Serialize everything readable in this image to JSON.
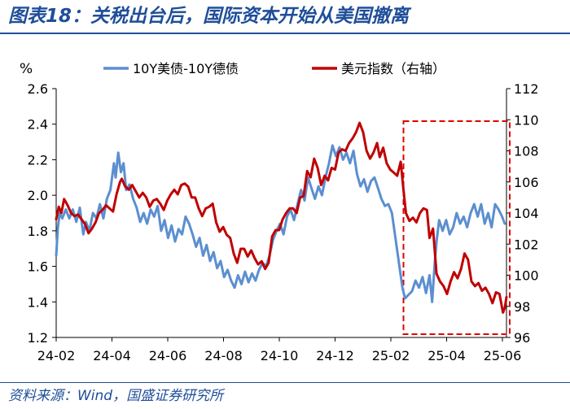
{
  "header": {
    "title": "图表18：关税出台后，国际资本开始从美国撤离"
  },
  "footer": {
    "source": "资料来源：Wind，国盛证券研究所"
  },
  "colors": {
    "title": "#1f4e99",
    "series_spread": "#5b8fd0",
    "series_dxy": "#c00000",
    "highlight_box": "#e00000"
  },
  "chart_data": {
    "type": "line",
    "left_axis": {
      "unit_label": "%",
      "range": [
        1.2,
        2.6
      ],
      "ticks": [
        "1.2",
        "1.4",
        "1.6",
        "1.8",
        "2.0",
        "2.2",
        "2.4",
        "2.6"
      ]
    },
    "right_axis": {
      "range": [
        96,
        112
      ],
      "ticks": [
        "96",
        "98",
        "100",
        "102",
        "104",
        "106",
        "108",
        "110",
        "112"
      ]
    },
    "x_axis": {
      "range": [
        "2024-02-01",
        "2025-06-30"
      ],
      "ticks": [
        "24-02",
        "24-04",
        "24-06",
        "24-08",
        "24-10",
        "24-12",
        "25-02",
        "25-04",
        "25-06"
      ]
    },
    "grid": false,
    "legend": {
      "position": "top"
    },
    "highlight": {
      "x_range": [
        "2025-03-07",
        "2025-06-30"
      ],
      "style": "dashed-box"
    },
    "series": [
      {
        "name": "10Y美债-10Y德债",
        "axis": "left",
        "color": "#5b8fd0",
        "points": [
          [
            "2024-02-01",
            1.66
          ],
          [
            "2024-02-03",
            1.82
          ],
          [
            "2024-02-05",
            1.9
          ],
          [
            "2024-02-08",
            1.87
          ],
          [
            "2024-02-12",
            1.92
          ],
          [
            "2024-02-16",
            1.87
          ],
          [
            "2024-02-20",
            1.92
          ],
          [
            "2024-02-24",
            1.85
          ],
          [
            "2024-02-28",
            1.93
          ],
          [
            "2024-03-03",
            1.78
          ],
          [
            "2024-03-06",
            1.85
          ],
          [
            "2024-03-10",
            1.8
          ],
          [
            "2024-03-14",
            1.9
          ],
          [
            "2024-03-18",
            1.87
          ],
          [
            "2024-03-22",
            1.95
          ],
          [
            "2024-03-26",
            1.87
          ],
          [
            "2024-03-30",
            1.98
          ],
          [
            "2024-04-03",
            2.03
          ],
          [
            "2024-04-07",
            2.18
          ],
          [
            "2024-04-09",
            2.1
          ],
          [
            "2024-04-12",
            2.24
          ],
          [
            "2024-04-15",
            2.13
          ],
          [
            "2024-04-18",
            2.18
          ],
          [
            "2024-04-21",
            2.03
          ],
          [
            "2024-04-25",
            2.06
          ],
          [
            "2024-04-29",
            1.98
          ],
          [
            "2024-05-03",
            1.93
          ],
          [
            "2024-05-07",
            1.85
          ],
          [
            "2024-05-11",
            1.9
          ],
          [
            "2024-05-15",
            1.84
          ],
          [
            "2024-05-19",
            1.92
          ],
          [
            "2024-05-23",
            1.88
          ],
          [
            "2024-05-27",
            1.94
          ],
          [
            "2024-05-31",
            1.8
          ],
          [
            "2024-06-04",
            1.86
          ],
          [
            "2024-06-08",
            1.76
          ],
          [
            "2024-06-12",
            1.83
          ],
          [
            "2024-06-16",
            1.74
          ],
          [
            "2024-06-20",
            1.81
          ],
          [
            "2024-06-24",
            1.78
          ],
          [
            "2024-06-28",
            1.88
          ],
          [
            "2024-07-02",
            1.84
          ],
          [
            "2024-07-06",
            1.78
          ],
          [
            "2024-07-10",
            1.71
          ],
          [
            "2024-07-14",
            1.76
          ],
          [
            "2024-07-18",
            1.66
          ],
          [
            "2024-07-22",
            1.72
          ],
          [
            "2024-07-26",
            1.63
          ],
          [
            "2024-07-30",
            1.68
          ],
          [
            "2024-08-03",
            1.59
          ],
          [
            "2024-08-07",
            1.63
          ],
          [
            "2024-08-11",
            1.54
          ],
          [
            "2024-08-15",
            1.58
          ],
          [
            "2024-08-19",
            1.52
          ],
          [
            "2024-08-23",
            1.48
          ],
          [
            "2024-08-27",
            1.55
          ],
          [
            "2024-08-31",
            1.5
          ],
          [
            "2024-09-04",
            1.57
          ],
          [
            "2024-09-08",
            1.51
          ],
          [
            "2024-09-12",
            1.56
          ],
          [
            "2024-09-16",
            1.52
          ],
          [
            "2024-09-20",
            1.58
          ],
          [
            "2024-09-24",
            1.62
          ],
          [
            "2024-09-28",
            1.6
          ],
          [
            "2024-10-02",
            1.66
          ],
          [
            "2024-10-06",
            1.75
          ],
          [
            "2024-10-10",
            1.8
          ],
          [
            "2024-10-14",
            1.84
          ],
          [
            "2024-10-18",
            1.78
          ],
          [
            "2024-10-22",
            1.88
          ],
          [
            "2024-10-26",
            1.92
          ],
          [
            "2024-10-30",
            1.86
          ],
          [
            "2024-11-03",
            1.95
          ],
          [
            "2024-11-07",
            2.03
          ],
          [
            "2024-11-11",
            1.97
          ],
          [
            "2024-11-15",
            2.1
          ],
          [
            "2024-11-19",
            2.04
          ],
          [
            "2024-11-23",
            1.98
          ],
          [
            "2024-11-27",
            2.05
          ],
          [
            "2024-12-01",
            2.0
          ],
          [
            "2024-12-05",
            2.1
          ],
          [
            "2024-12-09",
            2.18
          ],
          [
            "2024-12-13",
            2.28
          ],
          [
            "2024-12-17",
            2.22
          ],
          [
            "2024-12-21",
            2.27
          ],
          [
            "2024-12-25",
            2.2
          ],
          [
            "2024-12-29",
            2.24
          ],
          [
            "2025-01-02",
            2.18
          ],
          [
            "2025-01-06",
            2.25
          ],
          [
            "2025-01-10",
            2.12
          ],
          [
            "2025-01-14",
            2.05
          ],
          [
            "2025-01-18",
            2.09
          ],
          [
            "2025-01-22",
            2.02
          ],
          [
            "2025-01-26",
            2.08
          ],
          [
            "2025-01-30",
            2.1
          ],
          [
            "2025-02-03",
            2.04
          ],
          [
            "2025-02-07",
            1.98
          ],
          [
            "2025-02-11",
            1.94
          ],
          [
            "2025-02-15",
            1.95
          ],
          [
            "2025-02-19",
            1.9
          ],
          [
            "2025-02-23",
            1.76
          ],
          [
            "2025-02-27",
            1.62
          ],
          [
            "2025-03-03",
            1.48
          ],
          [
            "2025-03-06",
            1.42
          ],
          [
            "2025-03-10",
            1.44
          ],
          [
            "2025-03-14",
            1.46
          ],
          [
            "2025-03-18",
            1.52
          ],
          [
            "2025-03-22",
            1.48
          ],
          [
            "2025-03-26",
            1.54
          ],
          [
            "2025-03-30",
            1.45
          ],
          [
            "2025-04-03",
            1.55
          ],
          [
            "2025-04-06",
            1.4
          ],
          [
            "2025-04-09",
            1.62
          ],
          [
            "2025-04-11",
            1.74
          ],
          [
            "2025-04-14",
            1.86
          ],
          [
            "2025-04-18",
            1.8
          ],
          [
            "2025-04-22",
            1.86
          ],
          [
            "2025-04-26",
            1.78
          ],
          [
            "2025-04-30",
            1.82
          ],
          [
            "2025-05-04",
            1.9
          ],
          [
            "2025-05-08",
            1.84
          ],
          [
            "2025-05-12",
            1.88
          ],
          [
            "2025-05-16",
            1.82
          ],
          [
            "2025-05-20",
            1.9
          ],
          [
            "2025-05-24",
            1.95
          ],
          [
            "2025-05-28",
            1.88
          ],
          [
            "2025-06-01",
            1.95
          ],
          [
            "2025-06-05",
            1.84
          ],
          [
            "2025-06-09",
            1.9
          ],
          [
            "2025-06-13",
            1.82
          ],
          [
            "2025-06-17",
            1.95
          ],
          [
            "2025-06-21",
            1.92
          ],
          [
            "2025-06-25",
            1.88
          ],
          [
            "2025-06-28",
            1.84
          ]
        ]
      },
      {
        "name": "美元指数（右轴）",
        "axis": "right",
        "color": "#c00000",
        "points": [
          [
            "2024-02-01",
            103.6
          ],
          [
            "2024-02-04",
            104.4
          ],
          [
            "2024-02-07",
            104.0
          ],
          [
            "2024-02-10",
            104.9
          ],
          [
            "2024-02-14",
            104.5
          ],
          [
            "2024-02-18",
            104.0
          ],
          [
            "2024-02-22",
            103.8
          ],
          [
            "2024-02-26",
            103.9
          ],
          [
            "2024-03-01",
            103.6
          ],
          [
            "2024-03-05",
            103.3
          ],
          [
            "2024-03-09",
            102.7
          ],
          [
            "2024-03-13",
            103.0
          ],
          [
            "2024-03-17",
            103.4
          ],
          [
            "2024-03-21",
            104.0
          ],
          [
            "2024-03-25",
            104.2
          ],
          [
            "2024-03-29",
            104.5
          ],
          [
            "2024-04-02",
            104.3
          ],
          [
            "2024-04-06",
            104.1
          ],
          [
            "2024-04-10",
            105.2
          ],
          [
            "2024-04-14",
            106.0
          ],
          [
            "2024-04-16",
            106.2
          ],
          [
            "2024-04-20",
            105.7
          ],
          [
            "2024-04-24",
            105.5
          ],
          [
            "2024-04-28",
            105.8
          ],
          [
            "2024-05-02",
            105.4
          ],
          [
            "2024-05-06",
            105.0
          ],
          [
            "2024-05-10",
            105.3
          ],
          [
            "2024-05-14",
            105.0
          ],
          [
            "2024-05-18",
            104.4
          ],
          [
            "2024-05-22",
            104.8
          ],
          [
            "2024-05-26",
            104.9
          ],
          [
            "2024-05-30",
            104.6
          ],
          [
            "2024-06-03",
            104.2
          ],
          [
            "2024-06-07",
            104.8
          ],
          [
            "2024-06-11",
            105.2
          ],
          [
            "2024-06-15",
            105.5
          ],
          [
            "2024-06-19",
            105.2
          ],
          [
            "2024-06-23",
            105.8
          ],
          [
            "2024-06-27",
            105.9
          ],
          [
            "2024-07-01",
            105.7
          ],
          [
            "2024-07-05",
            105.0
          ],
          [
            "2024-07-09",
            105.0
          ],
          [
            "2024-07-13",
            104.3
          ],
          [
            "2024-07-17",
            103.8
          ],
          [
            "2024-07-21",
            104.3
          ],
          [
            "2024-07-25",
            104.4
          ],
          [
            "2024-07-29",
            104.6
          ],
          [
            "2024-08-02",
            103.4
          ],
          [
            "2024-08-06",
            102.8
          ],
          [
            "2024-08-10",
            103.1
          ],
          [
            "2024-08-14",
            102.6
          ],
          [
            "2024-08-18",
            102.4
          ],
          [
            "2024-08-22",
            101.4
          ],
          [
            "2024-08-26",
            100.8
          ],
          [
            "2024-08-30",
            101.7
          ],
          [
            "2024-09-03",
            101.7
          ],
          [
            "2024-09-07",
            101.2
          ],
          [
            "2024-09-11",
            101.6
          ],
          [
            "2024-09-15",
            101.1
          ],
          [
            "2024-09-19",
            100.7
          ],
          [
            "2024-09-23",
            100.9
          ],
          [
            "2024-09-27",
            100.4
          ],
          [
            "2024-10-01",
            100.8
          ],
          [
            "2024-10-05",
            102.5
          ],
          [
            "2024-10-09",
            102.9
          ],
          [
            "2024-10-13",
            102.9
          ],
          [
            "2024-10-17",
            103.6
          ],
          [
            "2024-10-21",
            104.0
          ],
          [
            "2024-10-25",
            104.3
          ],
          [
            "2024-10-29",
            104.3
          ],
          [
            "2024-11-02",
            104.0
          ],
          [
            "2024-11-06",
            105.0
          ],
          [
            "2024-11-10",
            105.1
          ],
          [
            "2024-11-14",
            106.7
          ],
          [
            "2024-11-18",
            106.3
          ],
          [
            "2024-11-22",
            107.5
          ],
          [
            "2024-11-26",
            106.9
          ],
          [
            "2024-11-30",
            105.8
          ],
          [
            "2024-12-04",
            106.4
          ],
          [
            "2024-12-08",
            106.1
          ],
          [
            "2024-12-12",
            106.9
          ],
          [
            "2024-12-16",
            106.8
          ],
          [
            "2024-12-20",
            107.9
          ],
          [
            "2024-12-24",
            108.1
          ],
          [
            "2024-12-28",
            108.0
          ],
          [
            "2025-01-01",
            108.5
          ],
          [
            "2025-01-05",
            108.8
          ],
          [
            "2025-01-09",
            109.2
          ],
          [
            "2025-01-13",
            109.8
          ],
          [
            "2025-01-17",
            109.2
          ],
          [
            "2025-01-21",
            108.0
          ],
          [
            "2025-01-25",
            107.5
          ],
          [
            "2025-01-29",
            107.9
          ],
          [
            "2025-02-02",
            108.5
          ],
          [
            "2025-02-05",
            107.6
          ],
          [
            "2025-02-09",
            108.2
          ],
          [
            "2025-02-13",
            107.2
          ],
          [
            "2025-02-17",
            106.8
          ],
          [
            "2025-02-21",
            106.6
          ],
          [
            "2025-02-25",
            106.4
          ],
          [
            "2025-03-01",
            107.3
          ],
          [
            "2025-03-04",
            105.6
          ],
          [
            "2025-03-07",
            104.0
          ],
          [
            "2025-03-11",
            103.5
          ],
          [
            "2025-03-15",
            103.7
          ],
          [
            "2025-03-19",
            103.4
          ],
          [
            "2025-03-23",
            104.0
          ],
          [
            "2025-03-27",
            104.3
          ],
          [
            "2025-03-31",
            104.2
          ],
          [
            "2025-04-03",
            102.4
          ],
          [
            "2025-04-07",
            103.0
          ],
          [
            "2025-04-11",
            100.1
          ],
          [
            "2025-04-15",
            99.6
          ],
          [
            "2025-04-19",
            99.3
          ],
          [
            "2025-04-23",
            98.8
          ],
          [
            "2025-04-27",
            99.6
          ],
          [
            "2025-05-01",
            100.2
          ],
          [
            "2025-05-05",
            99.8
          ],
          [
            "2025-05-09",
            100.4
          ],
          [
            "2025-05-13",
            101.4
          ],
          [
            "2025-05-17",
            101.0
          ],
          [
            "2025-05-21",
            99.6
          ],
          [
            "2025-05-25",
            99.3
          ],
          [
            "2025-05-29",
            99.5
          ],
          [
            "2025-06-02",
            99.0
          ],
          [
            "2025-06-06",
            99.2
          ],
          [
            "2025-06-10",
            98.8
          ],
          [
            "2025-06-14",
            98.2
          ],
          [
            "2025-06-18",
            98.9
          ],
          [
            "2025-06-22",
            98.8
          ],
          [
            "2025-06-26",
            97.6
          ],
          [
            "2025-06-28",
            97.9
          ],
          [
            "2025-06-30",
            98.6
          ]
        ]
      }
    ]
  }
}
